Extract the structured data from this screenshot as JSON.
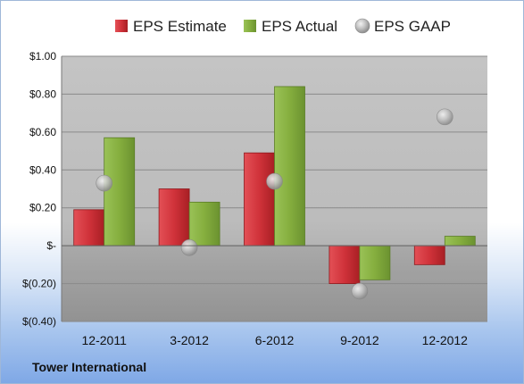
{
  "chart_data": {
    "type": "bar",
    "categories": [
      "12-2011",
      "3-2012",
      "6-2012",
      "9-2012",
      "12-2012"
    ],
    "series": [
      {
        "name": "EPS Estimate",
        "values": [
          0.19,
          0.3,
          0.49,
          -0.2,
          -0.1
        ],
        "color": "#c0282d"
      },
      {
        "name": "EPS Actual",
        "values": [
          0.57,
          0.23,
          0.84,
          -0.18,
          0.05
        ],
        "color": "#7ea53a"
      },
      {
        "name": "EPS GAAP",
        "type": "scatter",
        "values": [
          0.33,
          -0.01,
          0.34,
          -0.24,
          0.68
        ],
        "color": "#a8a8a8"
      }
    ],
    "ylim": [
      -0.4,
      1.0
    ],
    "yticks": [
      1.0,
      0.8,
      0.6,
      0.4,
      0.2,
      0.0,
      -0.2,
      -0.4
    ],
    "ytick_labels": [
      "$1.00",
      "$0.80",
      "$0.60",
      "$0.40",
      "$0.20",
      "$-",
      "$(0.20)",
      "$(0.40)"
    ],
    "legend_position": "top",
    "grid": true
  },
  "footer": {
    "company": "Tower International"
  }
}
